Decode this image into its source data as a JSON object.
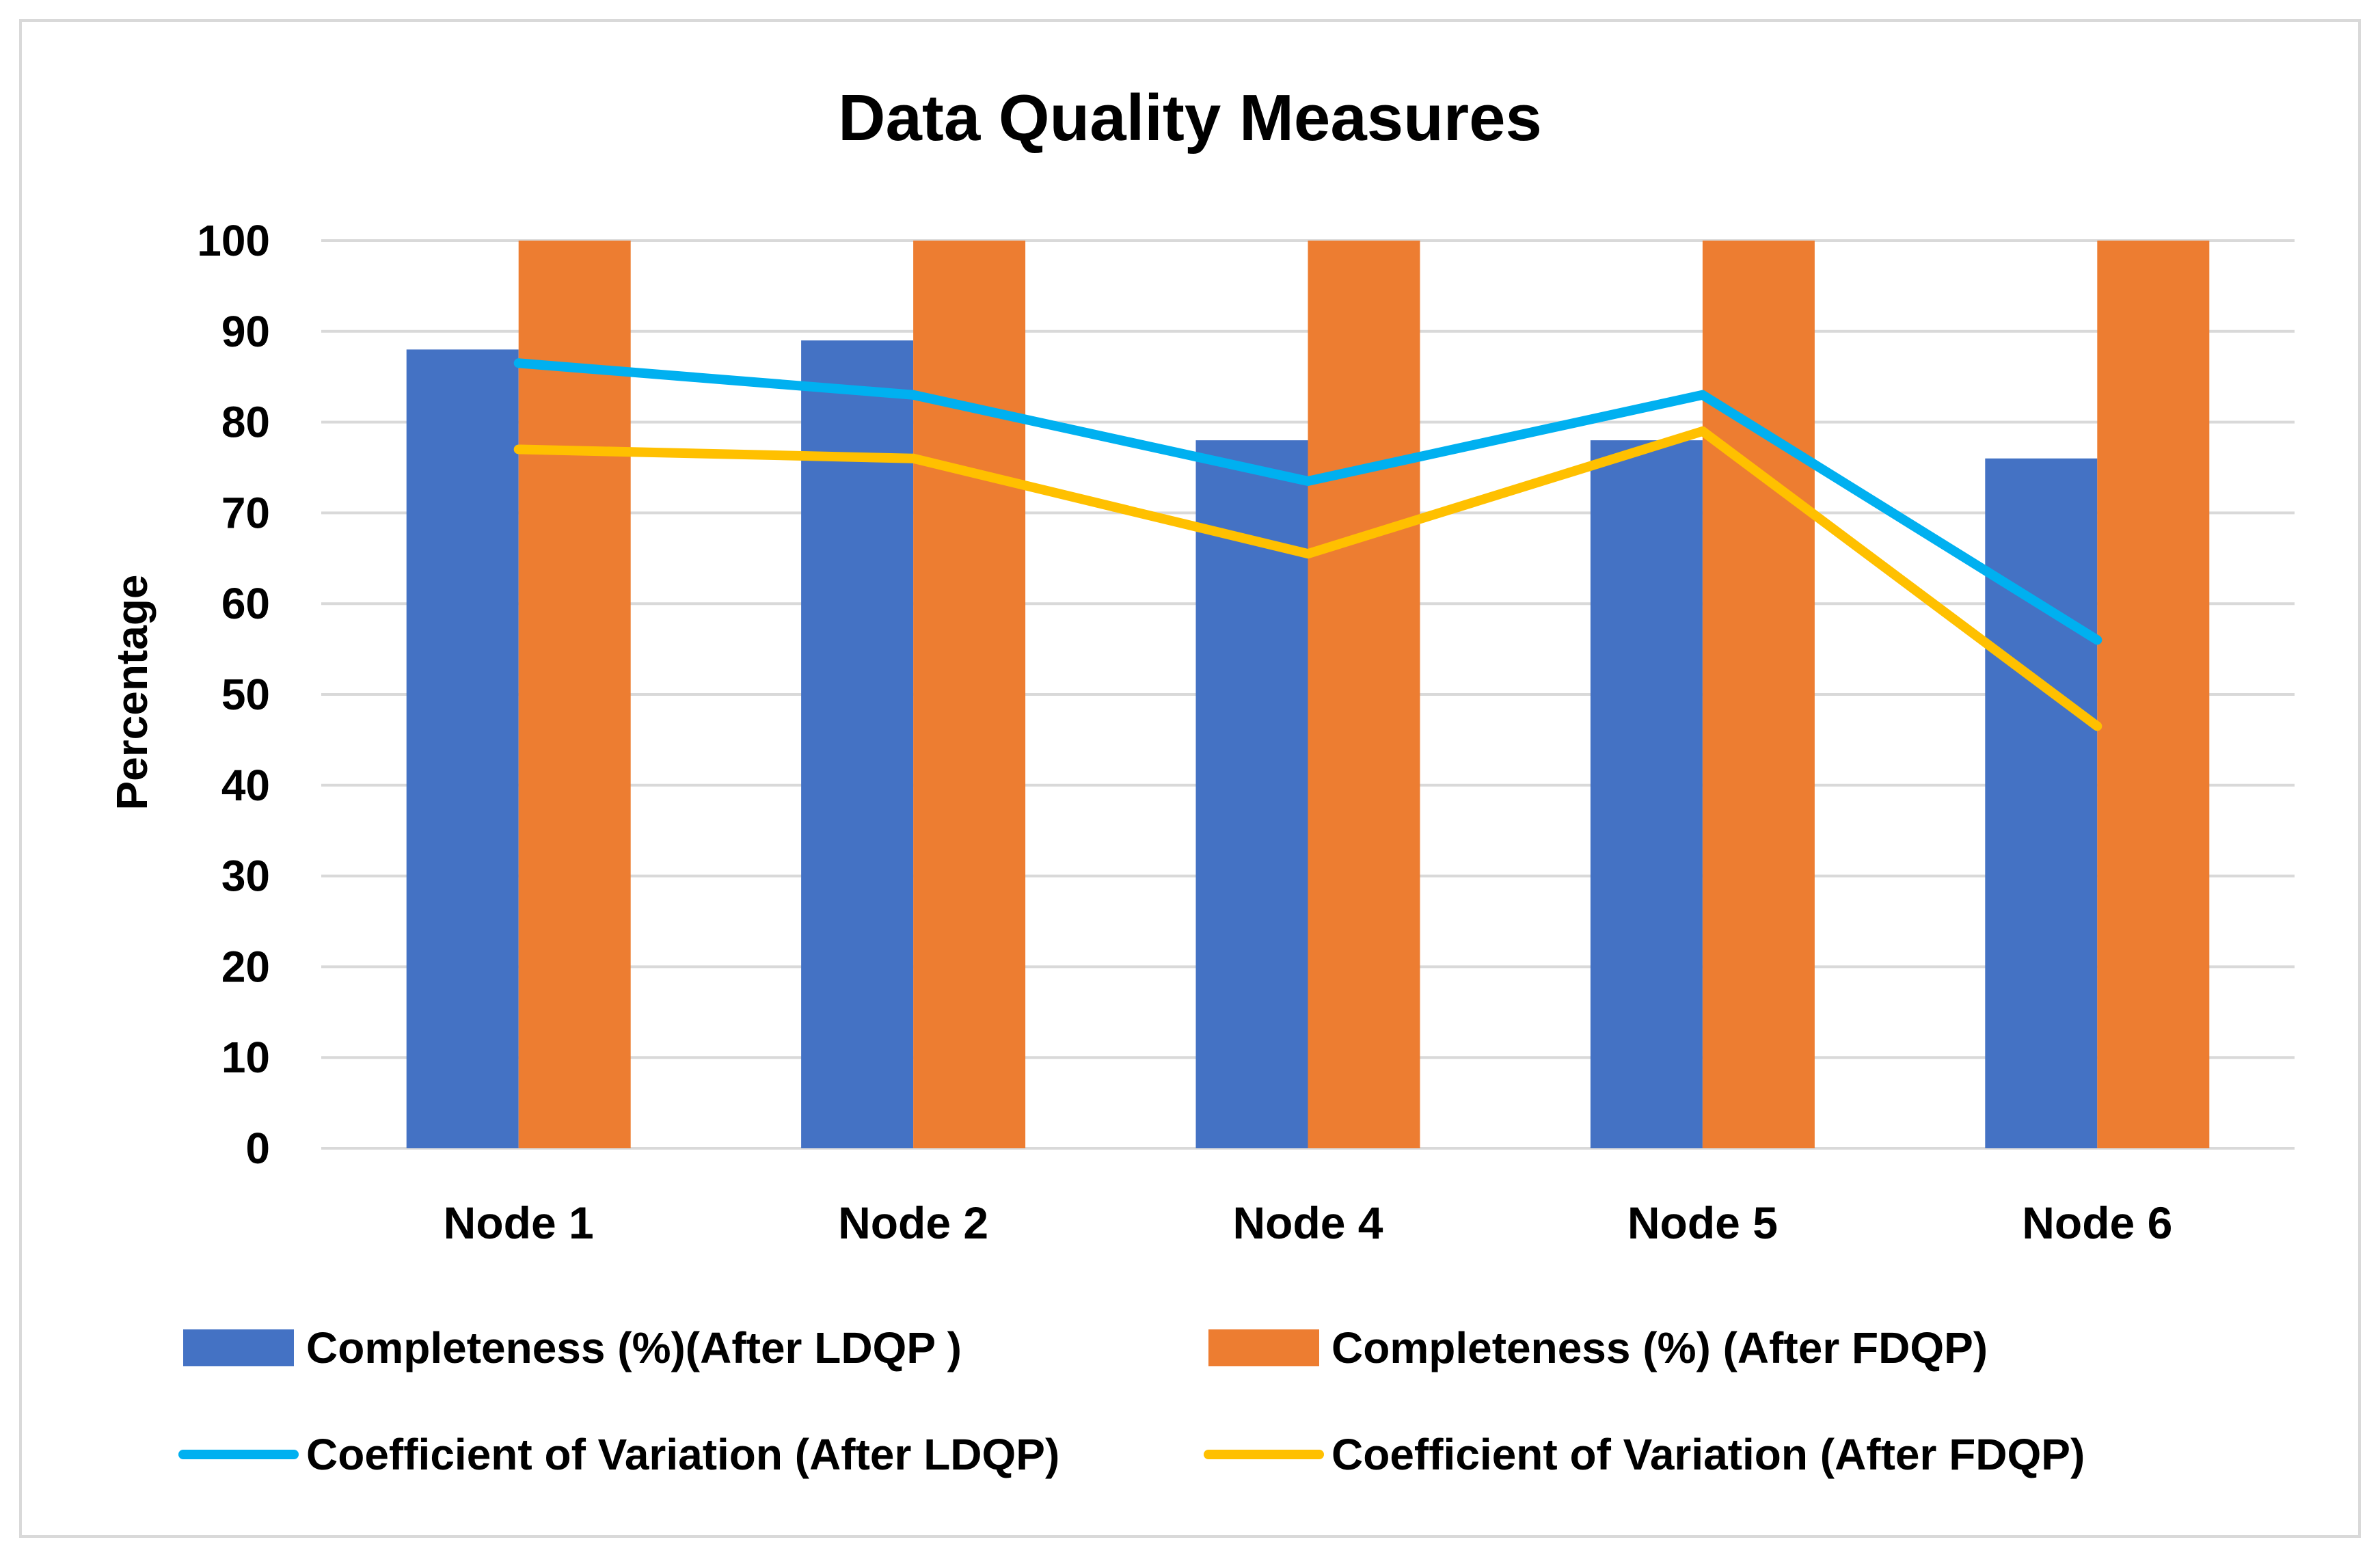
{
  "chart_data": {
    "type": "bar",
    "title": "Data Quality Measures",
    "xlabel": "",
    "ylabel": "Percentage",
    "ylim": [
      0,
      100
    ],
    "yticks": [
      0,
      10,
      20,
      30,
      40,
      50,
      60,
      70,
      80,
      90,
      100
    ],
    "grid": true,
    "legend_position": "bottom",
    "categories": [
      "Node 1",
      "Node 2",
      "Node 4",
      "Node 5",
      "Node 6"
    ],
    "series": [
      {
        "name": "Completeness (%)(After LDQP )",
        "kind": "bar",
        "color": "#4472C4",
        "values": [
          88,
          89,
          78,
          78,
          76
        ]
      },
      {
        "name": "Completeness (%) (After FDQP)",
        "kind": "bar",
        "color": "#ED7D31",
        "values": [
          100,
          100,
          100,
          100,
          100
        ]
      },
      {
        "name": "Coefficient of Variation (After LDQP)",
        "kind": "line",
        "color": "#00B0F0",
        "values": [
          86.5,
          83,
          73.5,
          83,
          56
        ]
      },
      {
        "name": "Coefficient of Variation (After FDQP)",
        "kind": "line",
        "color": "#FFC000",
        "values": [
          77,
          76,
          65.5,
          79,
          46.5
        ]
      }
    ],
    "colors": {
      "border": "#D9D9D9",
      "gridline": "#D9D9D9",
      "text": "#000000"
    }
  }
}
